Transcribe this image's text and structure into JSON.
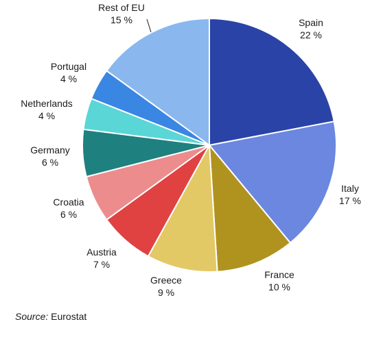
{
  "chart_data": {
    "type": "pie",
    "slices": [
      {
        "label": "Spain",
        "value": 22,
        "value_label": "22 %",
        "color": "#2a43a7"
      },
      {
        "label": "Italy",
        "value": 17,
        "value_label": "17 %",
        "color": "#6b87e0"
      },
      {
        "label": "France",
        "value": 10,
        "value_label": "10 %",
        "color": "#b0931f"
      },
      {
        "label": "Greece",
        "value": 9,
        "value_label": "9 %",
        "color": "#e3c866"
      },
      {
        "label": "Austria",
        "value": 7,
        "value_label": "7 %",
        "color": "#e04242"
      },
      {
        "label": "Croatia",
        "value": 6,
        "value_label": "6 %",
        "color": "#ec8c8c"
      },
      {
        "label": "Germany",
        "value": 6,
        "value_label": "6 %",
        "color": "#1f8080"
      },
      {
        "label": "Netherlands",
        "value": 4,
        "value_label": "4 %",
        "color": "#5ad6d6"
      },
      {
        "label": "Portugal",
        "value": 4,
        "value_label": "4 %",
        "color": "#3a86e3"
      },
      {
        "label": "Rest of EU",
        "value": 15,
        "value_label": "15 %",
        "color": "#8ab8ee"
      }
    ]
  },
  "source": {
    "prefix": "Source:",
    "text": "Eurostat"
  }
}
